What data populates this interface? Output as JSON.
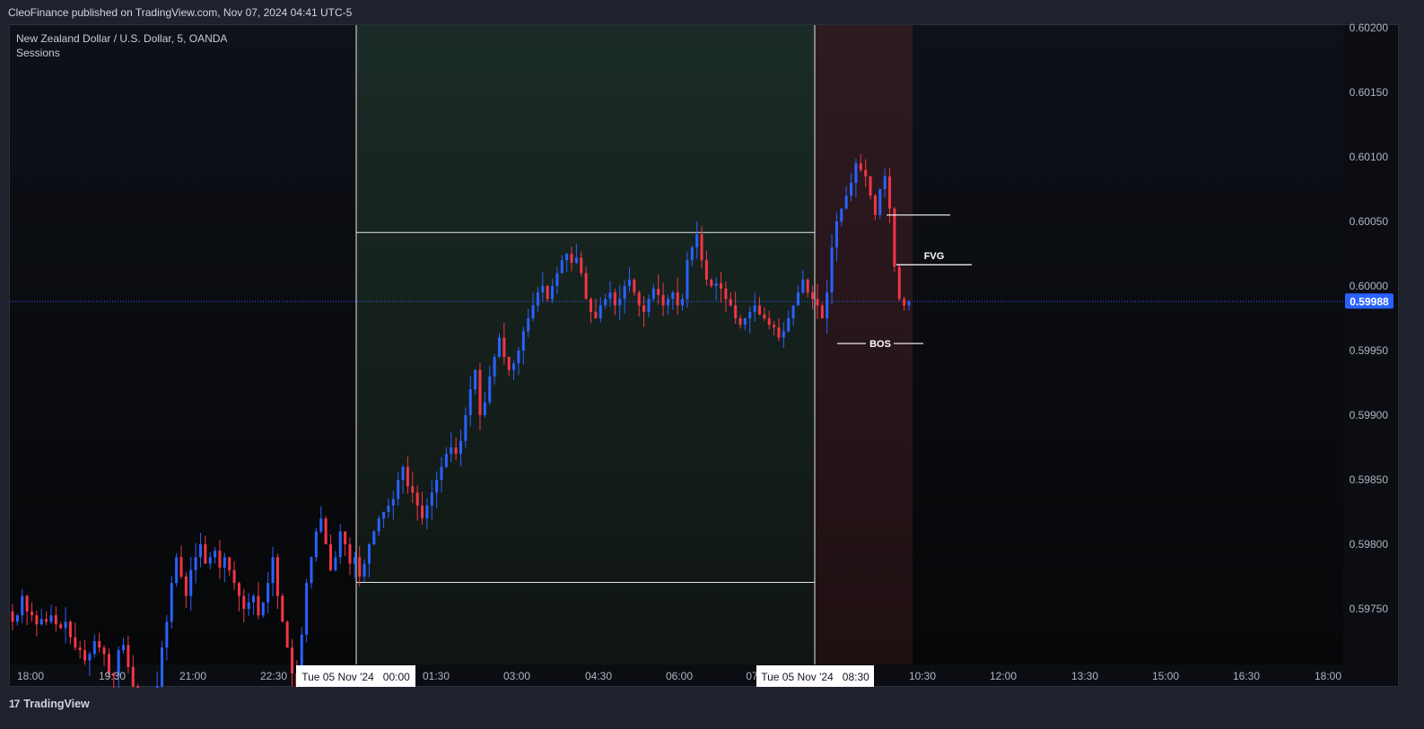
{
  "header": {
    "published": "CleoFinance published on TradingView.com, Nov 07, 2024 04:41 UTC-5"
  },
  "legend": {
    "symbol": "New Zealand Dollar / U.S. Dollar, 5, OANDA",
    "indicator": "Sessions"
  },
  "footer": {
    "brand": "TradingView",
    "logo": "17"
  },
  "colors": {
    "up": "#2962ff",
    "down": "#f23645",
    "background": "#0b0d13",
    "session_green": "#1a2a24",
    "session_red": "#3a1a20",
    "price_tag": "#2962ff"
  },
  "chart_data": {
    "type": "candlestick",
    "symbol": "NZDUSD",
    "interval": "5",
    "ylim": [
      0.5971,
      0.602
    ],
    "y_ticks": [
      "0.60200",
      "0.60150",
      "0.60100",
      "0.60050",
      "0.60000",
      "0.59950",
      "0.59900",
      "0.59850",
      "0.59800",
      "0.59750"
    ],
    "x_ticks": [
      "18:00",
      "19:30",
      "21:00",
      "22:30",
      "01:30",
      "03:00",
      "04:30",
      "06:00",
      "07",
      "10:30",
      "12:00",
      "13:30",
      "15:00",
      "16:30",
      "18:00"
    ],
    "x_highlight_labels": [
      "Tue 05 Nov '24   00:00",
      "Tue 05 Nov '24   08:30"
    ],
    "last_price": "0.59988",
    "sessions": [
      {
        "name": "green",
        "high": 0.600415,
        "low": 0.597705
      },
      {
        "name": "red"
      }
    ],
    "annotations": [
      {
        "text": "FVG",
        "price": 0.600165
      },
      {
        "text": "BOS",
        "price": 0.599555
      }
    ],
    "marker_lines": [
      {
        "price": 0.60055
      }
    ],
    "closes": [
      0.5974,
      0.59745,
      0.5976,
      0.59748,
      0.59745,
      0.59738,
      0.59742,
      0.5974,
      0.59745,
      0.59738,
      0.59735,
      0.5974,
      0.59728,
      0.5972,
      0.59718,
      0.5971,
      0.59715,
      0.59725,
      0.5972,
      0.59715,
      0.597,
      0.59698,
      0.59718,
      0.59722,
      0.59705,
      0.5969,
      0.59675,
      0.5968,
      0.59672,
      0.59665,
      0.5969,
      0.5972,
      0.5974,
      0.5977,
      0.5979,
      0.59775,
      0.5976,
      0.5978,
      0.5979,
      0.598,
      0.59785,
      0.5979,
      0.59795,
      0.59782,
      0.5979,
      0.5978,
      0.5977,
      0.5976,
      0.5975,
      0.59755,
      0.5976,
      0.59745,
      0.59755,
      0.5977,
      0.5979,
      0.5976,
      0.5974,
      0.5972,
      0.597,
      0.5969,
      0.5973,
      0.5977,
      0.5979,
      0.5981,
      0.5982,
      0.598,
      0.5978,
      0.5979,
      0.5981,
      0.598,
      0.59785,
      0.5979,
      0.59775,
      0.59785,
      0.598,
      0.5981,
      0.5982,
      0.59825,
      0.5983,
      0.59835,
      0.5985,
      0.5986,
      0.59845,
      0.5984,
      0.5983,
      0.5982,
      0.5983,
      0.5984,
      0.5985,
      0.5986,
      0.5987,
      0.59875,
      0.5987,
      0.5988,
      0.599,
      0.5992,
      0.59935,
      0.599,
      0.5991,
      0.5993,
      0.59945,
      0.5996,
      0.59945,
      0.59935,
      0.5994,
      0.5995,
      0.59965,
      0.59975,
      0.59985,
      0.59995,
      0.6,
      0.5999,
      0.6,
      0.6001,
      0.6002,
      0.60025,
      0.60018,
      0.60022,
      0.6001,
      0.5999,
      0.5998,
      0.59975,
      0.59985,
      0.5999,
      0.59995,
      0.59985,
      0.5999,
      0.6,
      0.60005,
      0.59995,
      0.59985,
      0.5998,
      0.5999,
      0.59998,
      0.59993,
      0.59985,
      0.5999,
      0.59995,
      0.59985,
      0.5999,
      0.6002,
      0.6003,
      0.6004,
      0.6002,
      0.60005,
      0.6,
      0.60002,
      0.59998,
      0.5999,
      0.59985,
      0.59975,
      0.5997,
      0.59975,
      0.5998,
      0.59985,
      0.59978,
      0.59975,
      0.5997,
      0.59968,
      0.5996,
      0.59965,
      0.59975,
      0.59985,
      0.59995,
      0.60005,
      0.59995,
      0.5999,
      0.59985,
      0.59975,
      0.59995,
      0.6003,
      0.6005,
      0.6006,
      0.6007,
      0.6008,
      0.60095,
      0.6009,
      0.60085,
      0.6007,
      0.60055,
      0.60075,
      0.60085,
      0.6006,
      0.60015,
      0.5999,
      0.59985,
      0.59988
    ]
  }
}
